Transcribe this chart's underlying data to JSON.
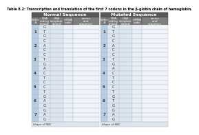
{
  "title": "Table 8.2: Transcription and translation of the first 7 codons in the β-globin chain of hemoglobin.",
  "normal_label": "Normal Sequence",
  "mutated_label": "Mutated Sequence",
  "col_headers": [
    "Codon\n#",
    "DNA\ncoding\nstrand",
    "DNA\ntemplate\nstrand",
    "mRNA\ncode",
    "amino\nacid\nsequence"
  ],
  "codons": [
    1,
    2,
    3,
    4,
    5,
    6,
    7
  ],
  "normal_dna_coding": [
    [
      "G",
      "T",
      "G"
    ],
    [
      "C",
      "A",
      "C"
    ],
    [
      "C",
      "T",
      "G"
    ],
    [
      "A",
      "C",
      "T"
    ],
    [
      "C",
      "C",
      "T"
    ],
    [
      "G",
      "A",
      "G"
    ],
    [
      "G",
      "A",
      "G"
    ]
  ],
  "mutated_dna_coding": [
    [
      "G",
      "T",
      "G"
    ],
    [
      "C",
      "A",
      "C"
    ],
    [
      "C",
      "T",
      "G"
    ],
    [
      "A",
      "C",
      "T"
    ],
    [
      "C",
      "C",
      "T"
    ],
    [
      "G",
      "T",
      "G"
    ],
    [
      "G",
      "A",
      "G"
    ]
  ],
  "footer": "Shape of RBC",
  "col_bg_codon": "#b8cce4",
  "col_bg_dna_coding": "#dce6f1",
  "col_bg_dna_template": "#dce6f1",
  "col_bg_mrna": "#e8f0f8",
  "col_bg_amino": "#f0f5fb",
  "header_bg": "#595959",
  "subheader_bg": "#7f7f7f",
  "cell_line_color": "#aaaaaa",
  "text_white": "#ffffff",
  "text_dark": "#333333",
  "title_fontsize": 3.5,
  "header_fontsize": 4.5,
  "subheader_fontsize": 3.0,
  "cell_fontsize": 3.8
}
